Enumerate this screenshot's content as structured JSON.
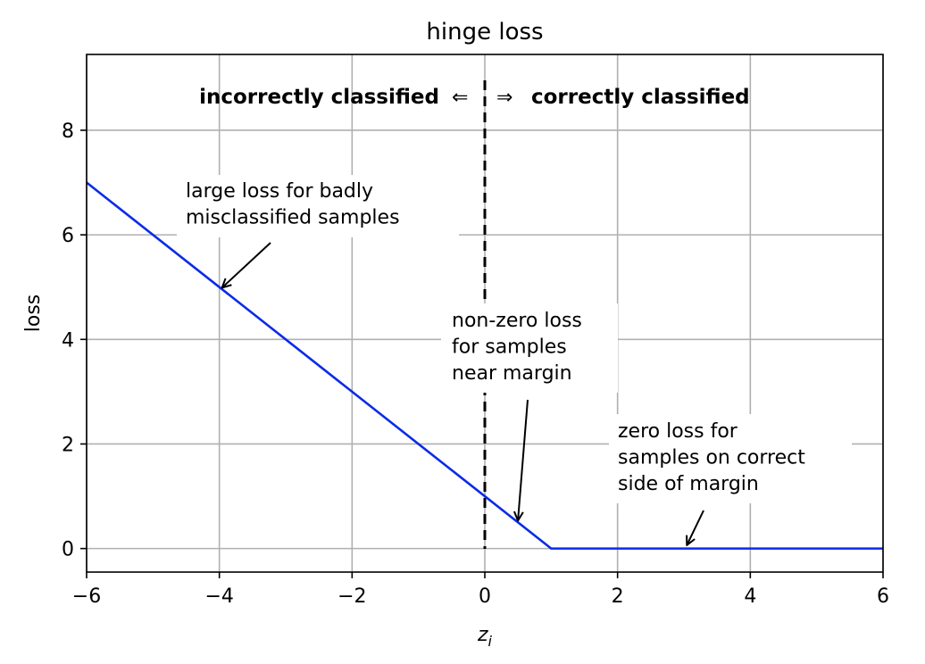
{
  "chart_data": {
    "type": "line",
    "title": "hinge loss",
    "xlabel": "z",
    "xlabel_sub": "i",
    "ylabel": "loss",
    "xlim": [
      -6,
      6
    ],
    "ylim": [
      -0.45,
      9.45
    ],
    "xticks": [
      -6,
      -4,
      -2,
      0,
      2,
      4,
      6
    ],
    "yticks": [
      0,
      2,
      4,
      6,
      8
    ],
    "grid": true,
    "line_color": "#0a2be8",
    "series": [
      {
        "x": [
          -6,
          0.9,
          1,
          6
        ],
        "y": [
          7,
          0.1,
          0,
          0
        ]
      }
    ],
    "divider_x": 0,
    "region_labels": {
      "left": "incorrectly classified",
      "left_arrow": "⇐",
      "right_arrow": "⇒",
      "right": "correctly classified"
    },
    "annotations": [
      {
        "lines": [
          "large loss for badly",
          "misclassified samples"
        ],
        "point": [
          -3.95,
          5.0
        ]
      },
      {
        "lines": [
          "non-zero loss",
          "for samples",
          "near margin"
        ],
        "point": [
          0.5,
          0.55
        ]
      },
      {
        "lines": [
          "zero loss for",
          "samples on correct",
          "side of margin"
        ],
        "point": [
          3.05,
          0.08
        ]
      }
    ]
  }
}
